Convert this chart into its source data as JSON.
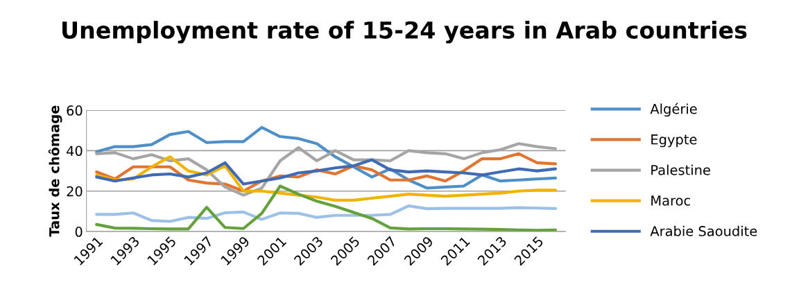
{
  "chart_data": {
    "type": "line",
    "title": "Unemployment rate of 15-24 years in Arab countries",
    "ylabel": "Taux de chômage",
    "categories": [
      "1991",
      null,
      "1993",
      null,
      "1995",
      null,
      "1997",
      null,
      "1999",
      null,
      "2001",
      null,
      "2003",
      null,
      "2005",
      null,
      "2007",
      null,
      "2009",
      null,
      "2011",
      null,
      "2013",
      null,
      "2015",
      null
    ],
    "series": [
      {
        "name": "Algérie",
        "color": "#4e8fc8",
        "values": [
          39.5,
          42,
          42,
          43,
          48,
          49.5,
          44,
          44.5,
          44.5,
          51.5,
          47,
          46,
          43.5,
          37,
          32,
          27,
          31,
          25.5,
          21.5,
          22,
          22.5,
          28,
          25,
          25.5,
          26,
          26.5
        ]
      },
      {
        "name": "Egypte",
        "color": "#e07532",
        "values": [
          29.5,
          26,
          32,
          32,
          32,
          25.5,
          24,
          23.5,
          20,
          25,
          27.5,
          27,
          30.5,
          28.5,
          32.5,
          30.5,
          25.5,
          25.5,
          27.5,
          25,
          30,
          36,
          36,
          38.5,
          34,
          33.5
        ]
      },
      {
        "name": "Palestine",
        "color": "#a5a5a5",
        "values": [
          38.5,
          39,
          36,
          38,
          35,
          36,
          30.5,
          22,
          18,
          21.5,
          35,
          41.5,
          35,
          40,
          35.5,
          35.5,
          35,
          40,
          39,
          38.5,
          36,
          39,
          40.5,
          43.5,
          42,
          41
        ]
      },
      {
        "name": "Maroc",
        "color": "#f0b400",
        "values": [
          28,
          25.5,
          26,
          32,
          37,
          30,
          28,
          32.5,
          20,
          20,
          19,
          18,
          17,
          15.5,
          15.5,
          16.5,
          17.5,
          18.5,
          18,
          17.5,
          18,
          18.5,
          19,
          20,
          20.5,
          20.5
        ]
      },
      {
        "name": "Arabie Saoudite",
        "color": "#3f6bb5",
        "values": [
          27,
          25,
          26.5,
          28,
          28.5,
          27,
          29,
          34,
          23.5,
          25,
          26.5,
          29,
          30,
          31.5,
          32.5,
          35.5,
          30.5,
          29.5,
          30,
          29.5,
          29,
          28,
          29.5,
          31,
          30,
          31
        ]
      },
      {
        "color": "#9dc0e6",
        "values": [
          8.5,
          8.5,
          9.2,
          5.5,
          5,
          7,
          6.5,
          9.3,
          9.7,
          6,
          9.2,
          9,
          7,
          8,
          8,
          8,
          8.5,
          12.7,
          11.3,
          11.5,
          11.5,
          11.5,
          11.5,
          11.8,
          11.6,
          11.4
        ]
      },
      {
        "color": "#64a03c",
        "values": [
          3.5,
          1.7,
          1.6,
          1.4,
          1.3,
          1.3,
          12,
          2,
          1.5,
          9,
          22.5,
          18.5,
          15,
          12.5,
          9.5,
          6.5,
          1.8,
          1.3,
          1.4,
          1.4,
          1.3,
          1.2,
          1.0,
          0.8,
          0.6,
          0.8
        ]
      }
    ],
    "ylim": [
      0,
      60
    ],
    "yticks": [
      0,
      20,
      40,
      60
    ],
    "grid": "y",
    "legend": "right",
    "marker": "none",
    "line_style": "solid"
  }
}
